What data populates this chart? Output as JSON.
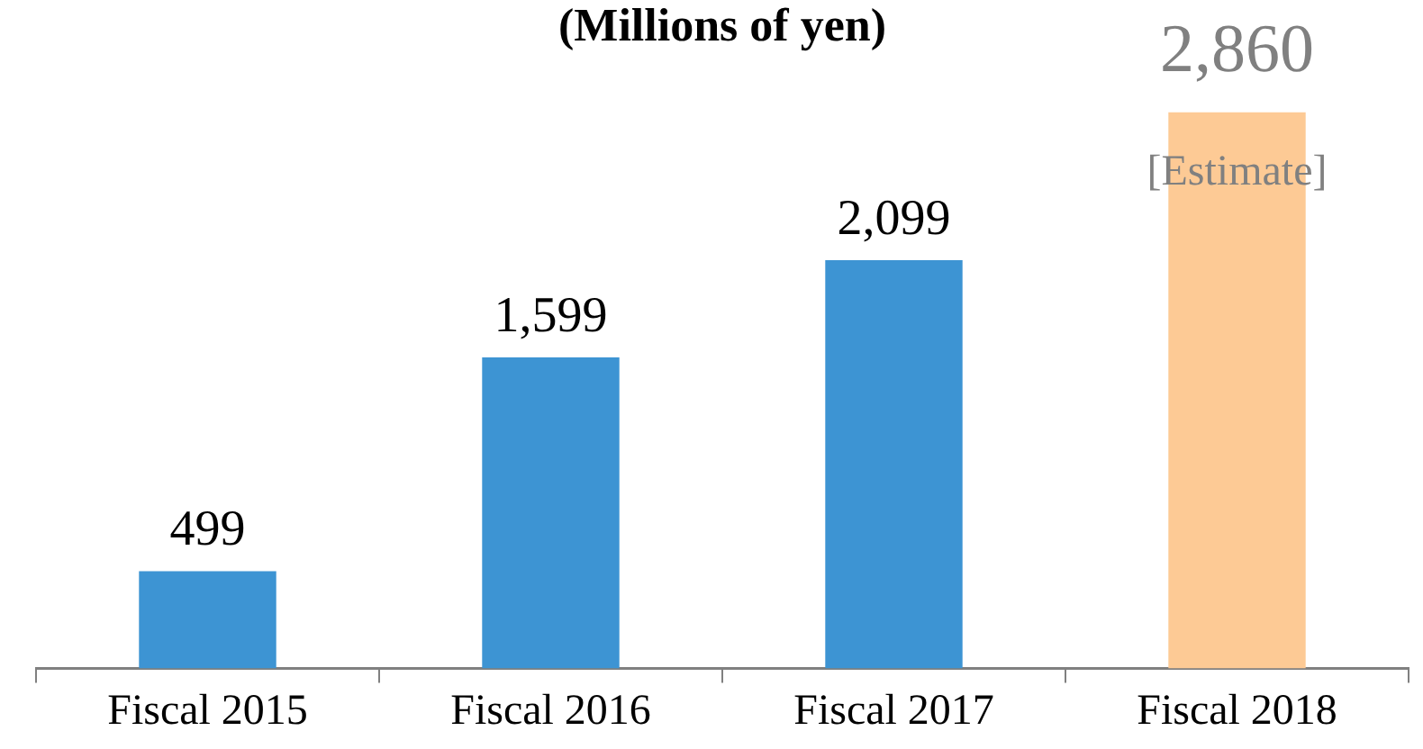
{
  "chart_data": {
    "type": "bar",
    "title": "(Millions of yen)",
    "categories": [
      "Fiscal 2015",
      "Fiscal 2016",
      "Fiscal 2017",
      "Fiscal 2018"
    ],
    "values": [
      499,
      1599,
      2099,
      2860
    ],
    "colors": [
      "#3d94d3",
      "#3d94d3",
      "#3d94d3",
      "#fdca95"
    ],
    "value_labels": [
      "499",
      "1,599",
      "2,099",
      "2,860"
    ],
    "annotations": [
      "[Estimate]"
    ],
    "grid": false,
    "legend": false
  }
}
